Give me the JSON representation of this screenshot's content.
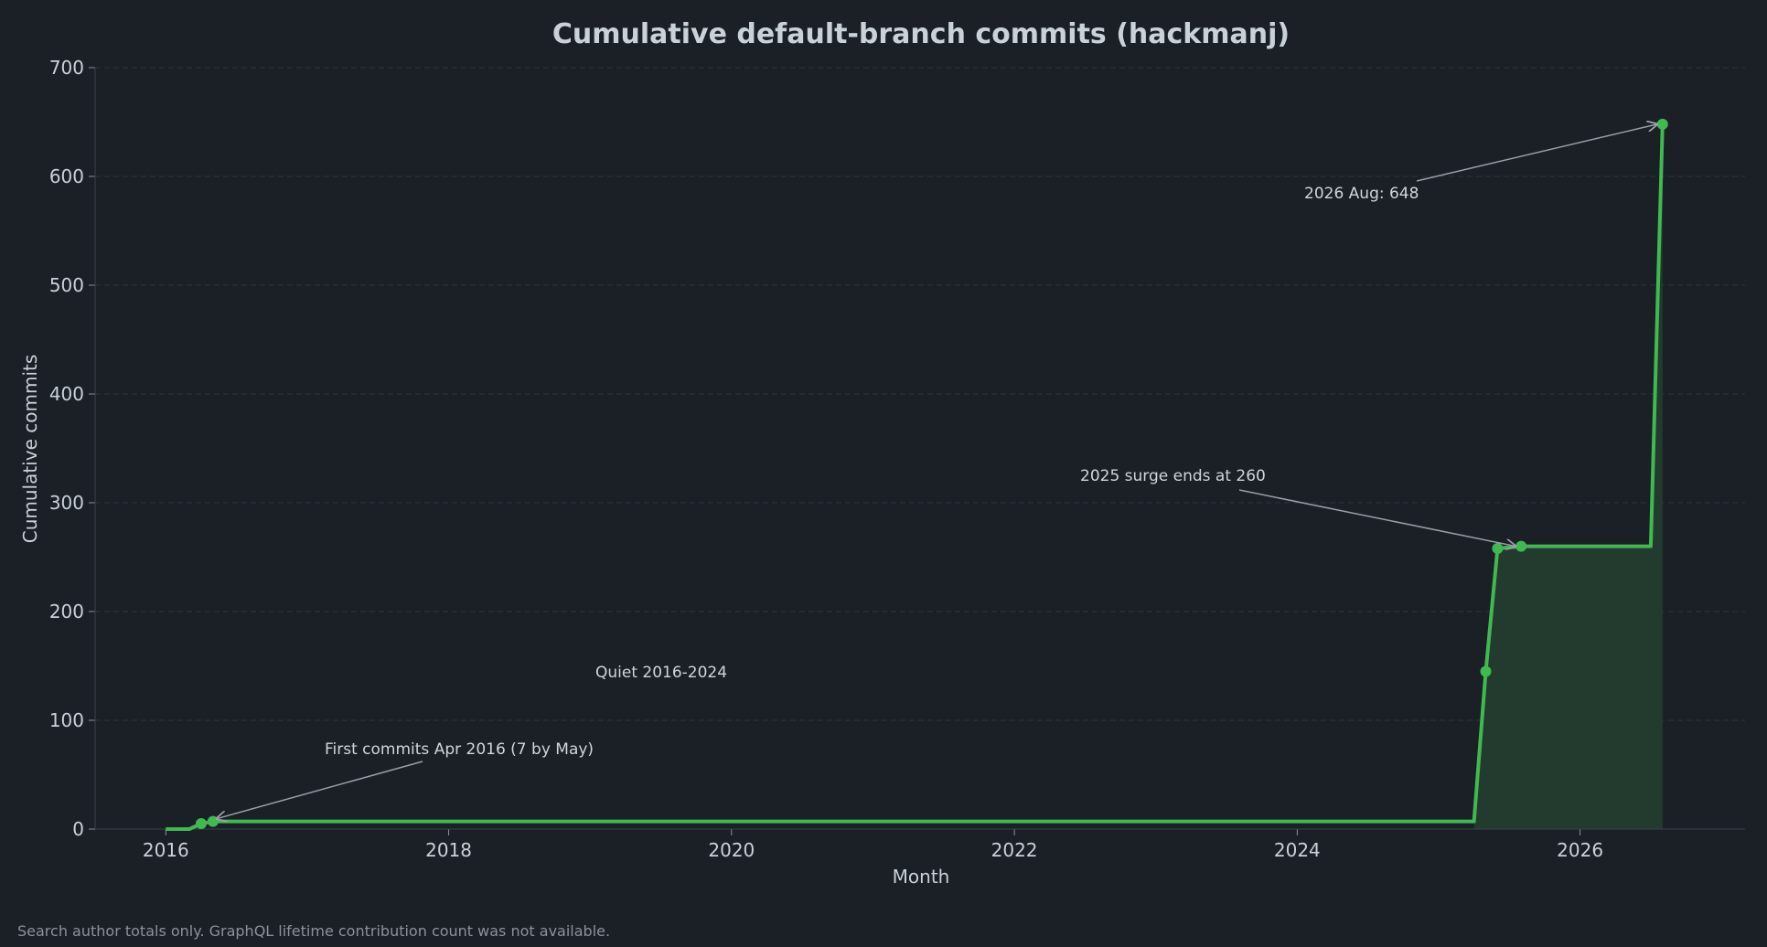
{
  "chart_data": {
    "type": "line",
    "title": "Cumulative default-branch commits (hackmanj)",
    "xlabel": "Month",
    "ylabel": "Cumulative commits",
    "xlim": [
      "2015-07",
      "2027-03"
    ],
    "ylim": [
      0,
      700
    ],
    "x_ticks": [
      "2016",
      "2018",
      "2020",
      "2022",
      "2024",
      "2026"
    ],
    "y_ticks": [
      0,
      100,
      200,
      300,
      400,
      500,
      600,
      700
    ],
    "grid": "horizontal dashed",
    "series": [
      {
        "color": "#3fb950",
        "points": [
          {
            "x": "2016-01",
            "y": 0
          },
          {
            "x": "2016-03",
            "y": 0
          },
          {
            "x": "2016-04",
            "y": 5
          },
          {
            "x": "2016-05",
            "y": 7
          },
          {
            "x": "2025-04",
            "y": 7
          },
          {
            "x": "2025-05",
            "y": 145
          },
          {
            "x": "2025-06",
            "y": 258
          },
          {
            "x": "2025-08",
            "y": 260
          },
          {
            "x": "2026-07",
            "y": 260
          },
          {
            "x": "2026-08",
            "y": 648
          }
        ],
        "markers": [
          "2016-04",
          "2016-05",
          "2025-05",
          "2025-06",
          "2025-08",
          "2026-08"
        ]
      }
    ],
    "shaded_region": {
      "from": "2025-04",
      "to": "2026-08",
      "color": "#223b2e"
    },
    "annotations": [
      {
        "text": "First commits Apr 2016 (7 by May)",
        "target": {
          "x": "2016-05",
          "y": 7
        }
      },
      {
        "text": "Quiet 2016-2024"
      },
      {
        "text": "2025 surge ends at 260",
        "target": {
          "x": "2025-08",
          "y": 260
        }
      },
      {
        "text": "2026 Aug: 648",
        "target": {
          "x": "2026-08",
          "y": 648
        }
      }
    ],
    "footnote": "Search author totals only. GraphQL lifetime contribution count was not available.",
    "colors": {
      "background": "#1b1f26",
      "line": "#3fb950",
      "text": "#c9d1d9",
      "grid": "#2e343d"
    }
  }
}
